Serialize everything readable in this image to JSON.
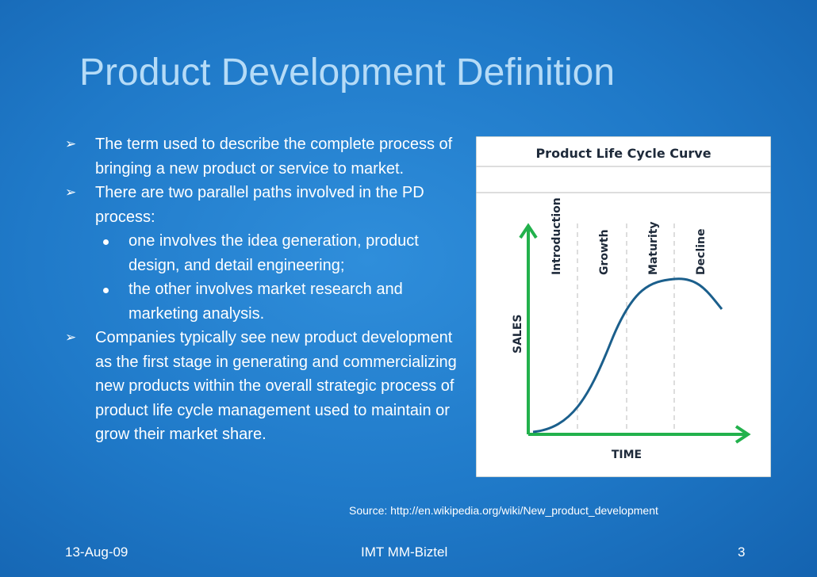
{
  "header": {
    "title": "Product Development Definition"
  },
  "bullets": [
    {
      "text": "The term used to describe the complete process of bringing a new product or service to market."
    },
    {
      "text": "There are two parallel paths involved in the PD process:",
      "sub": [
        "one involves the idea generation, product design, and detail engineering;",
        "the other involves market research and marketing analysis."
      ]
    },
    {
      "text": "Companies typically see new product development as the first stage in generating and commercializing new products within the overall strategic process of product life cycle management used to maintain or grow their market share."
    }
  ],
  "figure": {
    "title": "Product Life Cycle Curve",
    "stages": [
      "Introduction",
      "Growth",
      "Maturity",
      "Decline"
    ],
    "y_label": "SALES",
    "x_label": "TIME"
  },
  "source": "Source: http://en.wikipedia.org/wiki/New_product_development",
  "footer": {
    "date": "13-Aug-09",
    "center": "IMT MM-Biztel",
    "page": "3"
  }
}
